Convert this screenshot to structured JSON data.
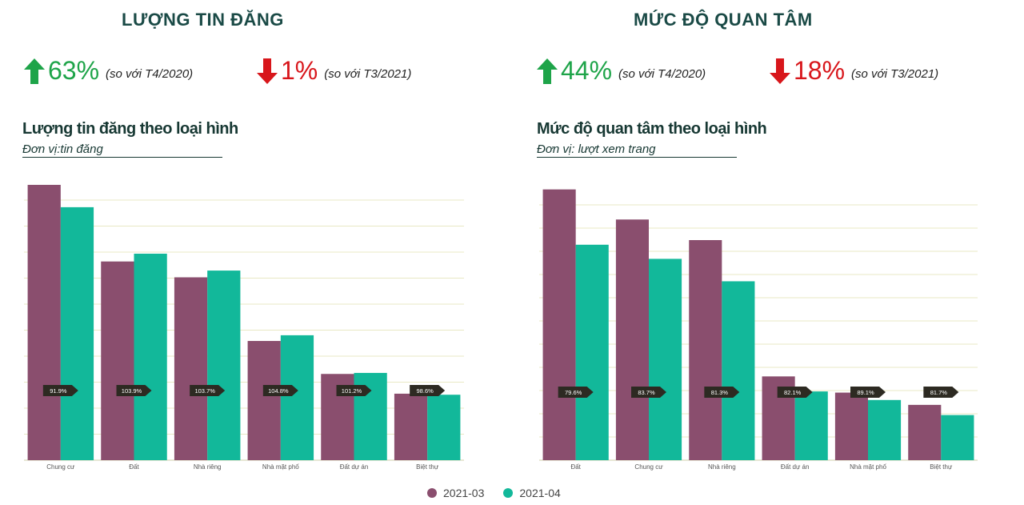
{
  "left_panel": {
    "title": "LƯỢNG TIN ĐĂNG",
    "stat_up": {
      "value": "63%",
      "note": "(so với T4/2020)"
    },
    "stat_down": {
      "value": "1%",
      "note": "(so với T3/2021)"
    },
    "subtitle": "Lượng tin  đăng theo loại hình",
    "unit": "Đơn vị:tin đăng"
  },
  "right_panel": {
    "title": "MỨC ĐỘ QUAN TÂM",
    "stat_up": {
      "value": "44%",
      "note": "(so với T4/2020)"
    },
    "stat_down": {
      "value": "18%",
      "note": "(so với T3/2021)"
    },
    "subtitle": "Mức độ quan tâm theo loại hình",
    "unit": "Đơn vị: lượt xem trang"
  },
  "colors": {
    "series1": "#8a4e6e",
    "series2": "#12b89a",
    "up": "#1ea449",
    "down": "#d8161b",
    "grid": "#e8e8c4",
    "marker": "#2d2a22"
  },
  "legend": [
    "2021-03",
    "2021-04"
  ],
  "chart_data": [
    {
      "type": "bar",
      "categories": [
        "Chung cư",
        "Đất",
        "Nhà riêng",
        "Nhà mặt phố",
        "Đất dự án",
        "Biệt thự"
      ],
      "series": [
        {
          "name": "2021-03",
          "values": [
            106,
            76.5,
            70.4,
            45.9,
            33.2,
            25.6
          ]
        },
        {
          "name": "2021-04",
          "values": [
            97.4,
            79.5,
            73,
            48.1,
            33.6,
            25.2
          ]
        }
      ],
      "ratio_labels": [
        "91.9%",
        "103.9%",
        "103.7%",
        "104.8%",
        "101.2%",
        "98.6%"
      ],
      "ylim": [
        0,
        110
      ],
      "grid": true
    },
    {
      "type": "bar",
      "categories": [
        "Đất",
        "Chung cư",
        "Nhà riêng",
        "Đất dự án",
        "Nhà mặt phố",
        "Biệt thự"
      ],
      "series": [
        {
          "name": "2021-03",
          "values": [
            117,
            104,
            95.1,
            36.2,
            29.2,
            23.9
          ]
        },
        {
          "name": "2021-04",
          "values": [
            93.1,
            87,
            77.3,
            29.7,
            26,
            19.5
          ]
        }
      ],
      "ratio_labels": [
        "79.6%",
        "83.7%",
        "81.3%",
        "82.1%",
        "89.1%",
        "81.7%"
      ],
      "ylim": [
        0,
        120
      ],
      "grid": true
    }
  ]
}
